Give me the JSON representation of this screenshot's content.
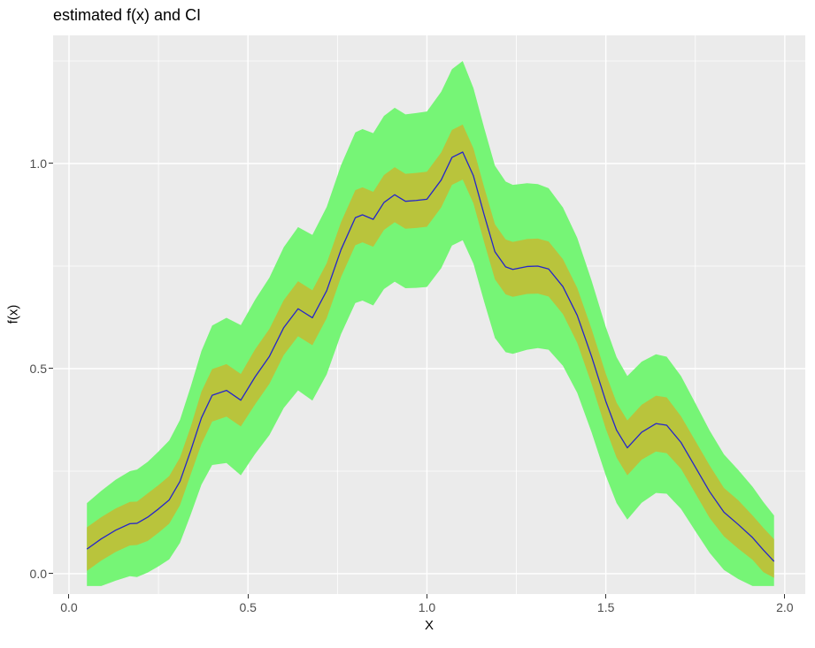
{
  "page": {
    "background": "#ffffff"
  },
  "chart_data": {
    "type": "line",
    "title": "estimated f(x) and CI",
    "xlabel": "X",
    "ylabel": "f(x)",
    "panel_bg": "#ebebeb",
    "grid_color": "#ffffff",
    "line_color": "#2525cb",
    "inner_band_color": "#b9c43c",
    "outer_band_color": "#76f576",
    "tick_label_color": "#4d4d4d",
    "xlim": [
      -0.0445,
      2.0572
    ],
    "ylim": [
      -0.0496,
      1.3125
    ],
    "grid": true,
    "legend": "none",
    "x_ticks": {
      "values": [
        0.0,
        0.5,
        1.0,
        1.5,
        2.0
      ],
      "labels": [
        "0.0",
        "0.5",
        "1.0",
        "1.5",
        "2.0"
      ]
    },
    "y_ticks": {
      "values": [
        0.0,
        0.5,
        1.0
      ],
      "labels": [
        "0.0",
        "0.5",
        "1.0"
      ]
    },
    "x_minor": [
      0.25,
      0.75,
      1.25,
      1.75
    ],
    "y_minor": [
      0.25,
      0.75,
      1.25
    ],
    "x": [
      0.05,
      0.09,
      0.13,
      0.17,
      0.19,
      0.22,
      0.25,
      0.28,
      0.31,
      0.34,
      0.37,
      0.4,
      0.44,
      0.48,
      0.52,
      0.56,
      0.6,
      0.64,
      0.68,
      0.72,
      0.76,
      0.8,
      0.82,
      0.85,
      0.88,
      0.91,
      0.94,
      0.97,
      1.0,
      1.04,
      1.07,
      1.1,
      1.13,
      1.16,
      1.19,
      1.22,
      1.24,
      1.28,
      1.31,
      1.34,
      1.38,
      1.42,
      1.46,
      1.5,
      1.53,
      1.56,
      1.6,
      1.64,
      1.67,
      1.71,
      1.75,
      1.79,
      1.83,
      1.87,
      1.91,
      1.94,
      1.97
    ],
    "series": [
      {
        "name": "outer confidence band",
        "type": "band",
        "fill": "#76f576",
        "lower": [
          -0.03,
          -0.03,
          -0.017,
          -0.006,
          -0.008,
          0.003,
          0.018,
          0.035,
          0.075,
          0.144,
          0.217,
          0.265,
          0.27,
          0.24,
          0.292,
          0.338,
          0.404,
          0.447,
          0.422,
          0.486,
          0.584,
          0.66,
          0.666,
          0.654,
          0.694,
          0.712,
          0.696,
          0.697,
          0.699,
          0.745,
          0.8,
          0.813,
          0.756,
          0.663,
          0.575,
          0.54,
          0.536,
          0.546,
          0.55,
          0.546,
          0.507,
          0.441,
          0.345,
          0.239,
          0.172,
          0.132,
          0.173,
          0.197,
          0.195,
          0.158,
          0.104,
          0.051,
          0.009,
          -0.013,
          -0.03,
          -0.03,
          -0.03
        ],
        "upper": [
          0.172,
          0.202,
          0.229,
          0.25,
          0.254,
          0.273,
          0.298,
          0.325,
          0.375,
          0.456,
          0.543,
          0.605,
          0.624,
          0.606,
          0.668,
          0.722,
          0.796,
          0.845,
          0.826,
          0.894,
          0.996,
          1.076,
          1.084,
          1.074,
          1.116,
          1.136,
          1.12,
          1.123,
          1.127,
          1.175,
          1.23,
          1.25,
          1.184,
          1.087,
          0.995,
          0.956,
          0.948,
          0.952,
          0.95,
          0.94,
          0.893,
          0.819,
          0.715,
          0.601,
          0.528,
          0.482,
          0.517,
          0.535,
          0.529,
          0.482,
          0.416,
          0.349,
          0.291,
          0.253,
          0.212,
          0.175,
          0.142
        ]
      },
      {
        "name": "inner confidence band",
        "type": "band",
        "fill": "#b9c43c",
        "lower": [
          0.007,
          0.032,
          0.053,
          0.069,
          0.07,
          0.08,
          0.1,
          0.122,
          0.167,
          0.242,
          0.316,
          0.371,
          0.383,
          0.359,
          0.413,
          0.463,
          0.533,
          0.579,
          0.557,
          0.623,
          0.723,
          0.801,
          0.808,
          0.797,
          0.838,
          0.857,
          0.841,
          0.843,
          0.846,
          0.893,
          0.948,
          0.961,
          0.903,
          0.808,
          0.718,
          0.681,
          0.675,
          0.682,
          0.683,
          0.676,
          0.633,
          0.563,
          0.463,
          0.353,
          0.283,
          0.24,
          0.278,
          0.298,
          0.294,
          0.256,
          0.196,
          0.136,
          0.091,
          0.061,
          0.034,
          0.004,
          -0.01
        ],
        "upper": [
          0.113,
          0.138,
          0.159,
          0.175,
          0.176,
          0.196,
          0.216,
          0.238,
          0.283,
          0.358,
          0.444,
          0.499,
          0.511,
          0.487,
          0.547,
          0.597,
          0.667,
          0.713,
          0.691,
          0.757,
          0.857,
          0.935,
          0.942,
          0.931,
          0.972,
          0.991,
          0.975,
          0.977,
          0.98,
          1.027,
          1.082,
          1.095,
          1.037,
          0.942,
          0.852,
          0.815,
          0.809,
          0.816,
          0.817,
          0.81,
          0.767,
          0.697,
          0.597,
          0.487,
          0.417,
          0.374,
          0.412,
          0.434,
          0.43,
          0.384,
          0.324,
          0.264,
          0.209,
          0.179,
          0.142,
          0.112,
          0.084
        ]
      },
      {
        "name": "estimated f(x)",
        "type": "line",
        "stroke": "#2525cb",
        "y": [
          0.06,
          0.085,
          0.106,
          0.122,
          0.123,
          0.138,
          0.158,
          0.18,
          0.225,
          0.3,
          0.38,
          0.435,
          0.447,
          0.423,
          0.48,
          0.53,
          0.6,
          0.646,
          0.624,
          0.69,
          0.79,
          0.868,
          0.875,
          0.864,
          0.905,
          0.924,
          0.908,
          0.91,
          0.913,
          0.96,
          1.015,
          1.028,
          0.97,
          0.875,
          0.785,
          0.748,
          0.742,
          0.749,
          0.75,
          0.743,
          0.7,
          0.63,
          0.53,
          0.42,
          0.35,
          0.307,
          0.345,
          0.366,
          0.362,
          0.32,
          0.26,
          0.2,
          0.15,
          0.12,
          0.088,
          0.058,
          0.03
        ]
      }
    ]
  }
}
